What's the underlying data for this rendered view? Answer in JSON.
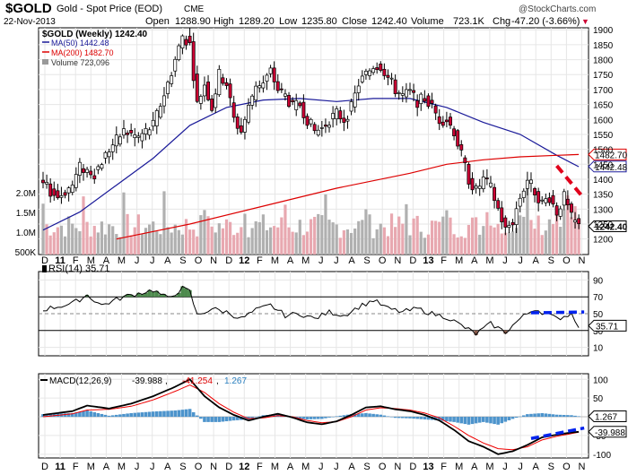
{
  "header": {
    "symbol": "$GOLD",
    "name": "Gold - Spot Price (EOD)",
    "exchange": "CME",
    "watermark": "@StockCharts.com",
    "date": "22-Nov-2013",
    "open_label": "Open",
    "open": "1288.90",
    "high_label": "High",
    "high": "1289.20",
    "low_label": "Low",
    "low": "1235.80",
    "close_label": "Close",
    "close": "1242.40",
    "volume_label": "Volume",
    "volume": "723.1K",
    "chg_label": "Chg",
    "chg": "-47.20 (-3.66%)",
    "chg_arrow": "▼"
  },
  "colors": {
    "candle_up": "#ffffff",
    "candle_down": "#cc0033",
    "ma50": "#1a1a99",
    "ma200": "#dd0000",
    "vol_up": "#b0b0b0",
    "vol_down": "#e8a8b0",
    "rsi_fill_high": "#4d8a4d",
    "rsi_fill_low": "#8a5a4a",
    "macd_line": "#000000",
    "signal_line": "#ee0000",
    "hist": "#4d94cc",
    "trend_dash": "#e0001b",
    "blue_dash": "#0022ee"
  },
  "legend": {
    "main": "$GOLD (Weekly) 1242.40",
    "ma50": "MA(50) 1442.48",
    "ma200": "MA(200) 1482.70",
    "volume": "Volume 723,096"
  },
  "chart_data": [
    {
      "type": "candlestick",
      "title": "$GOLD (Weekly)",
      "ylim": [
        1175,
        1930
      ],
      "yticks": [
        "1900",
        "1850",
        "1800",
        "1750",
        "1700",
        "1650",
        "1600",
        "1550",
        "1500",
        "1450",
        "1400",
        "1350",
        "1300",
        "1250",
        "1200"
      ],
      "volume_ticks": [
        "2.0M",
        "1.5M",
        "1.0M",
        "500K"
      ],
      "last_price_labels": [
        "1482.70",
        "1442.48",
        "1242.40"
      ],
      "keypoints": [
        [
          0,
          1380
        ],
        [
          4,
          1340
        ],
        [
          8,
          1380
        ],
        [
          10,
          1440
        ],
        [
          14,
          1420
        ],
        [
          18,
          1500
        ],
        [
          22,
          1560
        ],
        [
          26,
          1540
        ],
        [
          30,
          1580
        ],
        [
          34,
          1720
        ],
        [
          36,
          1800
        ],
        [
          38,
          1880
        ],
        [
          40,
          1850
        ],
        [
          42,
          1650
        ],
        [
          44,
          1720
        ],
        [
          46,
          1640
        ],
        [
          48,
          1750
        ],
        [
          50,
          1720
        ],
        [
          52,
          1600
        ],
        [
          54,
          1560
        ],
        [
          56,
          1640
        ],
        [
          58,
          1720
        ],
        [
          60,
          1720
        ],
        [
          62,
          1760
        ],
        [
          64,
          1700
        ],
        [
          66,
          1680
        ],
        [
          68,
          1640
        ],
        [
          70,
          1650
        ],
        [
          72,
          1600
        ],
        [
          74,
          1560
        ],
        [
          76,
          1570
        ],
        [
          78,
          1600
        ],
        [
          80,
          1620
        ],
        [
          82,
          1600
        ],
        [
          84,
          1640
        ],
        [
          86,
          1720
        ],
        [
          88,
          1750
        ],
        [
          90,
          1780
        ],
        [
          92,
          1780
        ],
        [
          94,
          1740
        ],
        [
          96,
          1700
        ],
        [
          98,
          1680
        ],
        [
          100,
          1690
        ],
        [
          102,
          1660
        ],
        [
          104,
          1670
        ],
        [
          106,
          1640
        ],
        [
          108,
          1600
        ],
        [
          110,
          1600
        ],
        [
          112,
          1560
        ],
        [
          114,
          1480
        ],
        [
          116,
          1400
        ],
        [
          118,
          1360
        ],
        [
          120,
          1400
        ],
        [
          122,
          1370
        ],
        [
          124,
          1300
        ],
        [
          126,
          1230
        ],
        [
          128,
          1260
        ],
        [
          130,
          1340
        ],
        [
          132,
          1400
        ],
        [
          134,
          1360
        ],
        [
          136,
          1320
        ],
        [
          138,
          1340
        ],
        [
          140,
          1290
        ],
        [
          142,
          1340
        ],
        [
          144,
          1270
        ],
        [
          146,
          1242
        ]
      ],
      "ma50": [
        [
          0,
          1230
        ],
        [
          10,
          1290
        ],
        [
          20,
          1380
        ],
        [
          30,
          1470
        ],
        [
          40,
          1580
        ],
        [
          50,
          1640
        ],
        [
          60,
          1665
        ],
        [
          70,
          1670
        ],
        [
          80,
          1660
        ],
        [
          90,
          1670
        ],
        [
          100,
          1670
        ],
        [
          110,
          1640
        ],
        [
          120,
          1590
        ],
        [
          130,
          1550
        ],
        [
          140,
          1480
        ],
        [
          146,
          1442
        ]
      ],
      "ma200": [
        [
          20,
          1200
        ],
        [
          40,
          1250
        ],
        [
          60,
          1310
        ],
        [
          80,
          1370
        ],
        [
          100,
          1420
        ],
        [
          110,
          1450
        ],
        [
          120,
          1465
        ],
        [
          130,
          1475
        ],
        [
          140,
          1480
        ],
        [
          146,
          1482.7
        ]
      ],
      "trendline": [
        [
          140,
          1445
        ],
        [
          146,
          1335
        ]
      ],
      "date_labels": [
        "D",
        "11",
        "F",
        "M",
        "A",
        "M",
        "J",
        "J",
        "A",
        "S",
        "O",
        "N",
        "D",
        "12",
        "F",
        "M",
        "A",
        "M",
        "J",
        "J",
        "A",
        "S",
        "O",
        "N",
        "D",
        "13",
        "F",
        "M",
        "A",
        "M",
        "J",
        "J",
        "A",
        "S",
        "O",
        "N"
      ],
      "bold_labels": [
        "11",
        "12",
        "13"
      ]
    },
    {
      "type": "line",
      "title": "RSI(14) 35.71",
      "ylim": [
        0,
        100
      ],
      "yticks": [
        "90",
        "70",
        "50",
        "30",
        "10"
      ],
      "last_label": "35.71",
      "keypoints": [
        [
          0,
          55
        ],
        [
          8,
          62
        ],
        [
          12,
          72
        ],
        [
          16,
          60
        ],
        [
          22,
          70
        ],
        [
          30,
          78
        ],
        [
          34,
          68
        ],
        [
          38,
          80
        ],
        [
          40,
          76
        ],
        [
          42,
          48
        ],
        [
          46,
          56
        ],
        [
          50,
          52
        ],
        [
          54,
          44
        ],
        [
          58,
          54
        ],
        [
          62,
          60
        ],
        [
          66,
          48
        ],
        [
          70,
          50
        ],
        [
          74,
          44
        ],
        [
          78,
          52
        ],
        [
          82,
          48
        ],
        [
          86,
          58
        ],
        [
          90,
          66
        ],
        [
          94,
          56
        ],
        [
          98,
          52
        ],
        [
          102,
          56
        ],
        [
          106,
          50
        ],
        [
          110,
          46
        ],
        [
          114,
          36
        ],
        [
          118,
          26
        ],
        [
          122,
          38
        ],
        [
          126,
          28
        ],
        [
          130,
          44
        ],
        [
          134,
          56
        ],
        [
          138,
          48
        ],
        [
          140,
          44
        ],
        [
          144,
          50
        ],
        [
          146,
          36
        ]
      ]
    },
    {
      "type": "line",
      "title": "MACD(12,26,9) -39.988, -41.254, 1.267",
      "ylim": [
        -110,
        115
      ],
      "yticks": [
        "100",
        "50",
        "0",
        "-50",
        "-100"
      ],
      "last_labels": [
        "1.267",
        "-39.988"
      ],
      "series": [
        {
          "name": "MACD",
          "value": "-39.988",
          "keypoints": [
            [
              0,
              5
            ],
            [
              8,
              15
            ],
            [
              12,
              30
            ],
            [
              18,
              22
            ],
            [
              24,
              35
            ],
            [
              30,
              55
            ],
            [
              36,
              80
            ],
            [
              40,
              100
            ],
            [
              44,
              55
            ],
            [
              48,
              25
            ],
            [
              52,
              5
            ],
            [
              56,
              -10
            ],
            [
              60,
              0
            ],
            [
              64,
              8
            ],
            [
              68,
              -2
            ],
            [
              72,
              -15
            ],
            [
              76,
              -20
            ],
            [
              80,
              -12
            ],
            [
              84,
              5
            ],
            [
              88,
              25
            ],
            [
              92,
              28
            ],
            [
              96,
              20
            ],
            [
              100,
              15
            ],
            [
              104,
              5
            ],
            [
              108,
              -10
            ],
            [
              112,
              -35
            ],
            [
              116,
              -65
            ],
            [
              120,
              -80
            ],
            [
              124,
              -100
            ],
            [
              128,
              -92
            ],
            [
              132,
              -75
            ],
            [
              136,
              -55
            ],
            [
              140,
              -48
            ],
            [
              144,
              -42
            ],
            [
              146,
              -40
            ]
          ]
        },
        {
          "name": "Signal",
          "value": "-41.254",
          "keypoints": [
            [
              0,
              0
            ],
            [
              8,
              8
            ],
            [
              12,
              18
            ],
            [
              18,
              20
            ],
            [
              24,
              28
            ],
            [
              30,
              45
            ],
            [
              36,
              68
            ],
            [
              40,
              85
            ],
            [
              44,
              65
            ],
            [
              48,
              35
            ],
            [
              52,
              12
            ],
            [
              56,
              -5
            ],
            [
              60,
              -3
            ],
            [
              64,
              3
            ],
            [
              68,
              0
            ],
            [
              72,
              -10
            ],
            [
              76,
              -16
            ],
            [
              80,
              -13
            ],
            [
              84,
              0
            ],
            [
              88,
              18
            ],
            [
              92,
              24
            ],
            [
              96,
              22
            ],
            [
              100,
              18
            ],
            [
              104,
              10
            ],
            [
              108,
              -3
            ],
            [
              112,
              -25
            ],
            [
              116,
              -50
            ],
            [
              120,
              -70
            ],
            [
              124,
              -85
            ],
            [
              128,
              -88
            ],
            [
              132,
              -80
            ],
            [
              136,
              -62
            ],
            [
              140,
              -52
            ],
            [
              144,
              -45
            ],
            [
              146,
              -41
            ]
          ]
        },
        {
          "name": "Histogram",
          "value": "1.267"
        }
      ]
    }
  ]
}
